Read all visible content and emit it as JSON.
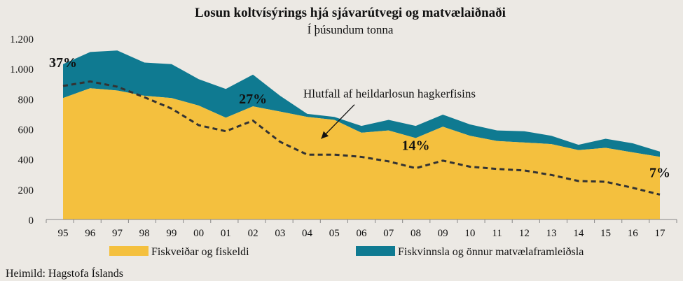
{
  "chart_data": {
    "type": "area",
    "stacked": true,
    "title": "Losun koltvísýrings  hjá sjávarútvegi og matvælaiðnaði",
    "subtitle": "Í þúsundum tonna",
    "source": "Heimild:  Hagstofa Íslands",
    "categories": [
      "95",
      "96",
      "97",
      "98",
      "99",
      "00",
      "01",
      "02",
      "03",
      "04",
      "05",
      "06",
      "07",
      "08",
      "09",
      "10",
      "11",
      "12",
      "13",
      "14",
      "15",
      "16",
      "17"
    ],
    "ylim": [
      0,
      1200
    ],
    "yticks": [
      0,
      200,
      400,
      600,
      800,
      1000,
      1200
    ],
    "ytick_labels": [
      "0",
      "200",
      "400",
      "600",
      "800",
      "1.000",
      "1.200"
    ],
    "series": [
      {
        "name": "Fiskveiðar og fiskeldi",
        "color": "#f4c03e",
        "values": [
          805,
          870,
          855,
          820,
          805,
          755,
          675,
          750,
          715,
          680,
          660,
          575,
          590,
          540,
          615,
          555,
          520,
          510,
          500,
          460,
          475,
          445,
          415
        ]
      },
      {
        "name": "Fiskvinnsla og önnur matvælaframleiðsla",
        "color": "#0f7a91",
        "values": [
          225,
          240,
          265,
          220,
          225,
          175,
          190,
          210,
          105,
          20,
          20,
          45,
          70,
          80,
          80,
          75,
          70,
          75,
          55,
          35,
          60,
          60,
          35
        ]
      }
    ],
    "share_line": {
      "name": "Hlutfall af heildarlosun hagkerfisins",
      "style": "dashed",
      "color": "#333333",
      "values": [
        885,
        915,
        880,
        810,
        735,
        625,
        585,
        655,
        515,
        430,
        430,
        415,
        385,
        340,
        390,
        350,
        335,
        325,
        295,
        255,
        250,
        210,
        165
      ]
    },
    "annotations": [
      {
        "text": "37%",
        "category": "95",
        "y": 1010
      },
      {
        "text": "27%",
        "category": "02",
        "y": 770
      },
      {
        "text": "14%",
        "category": "08",
        "y": 460
      },
      {
        "text": "7%",
        "category": "17",
        "y": 280
      }
    ],
    "arrow_label": {
      "text": "Hlutfall af heildarlosun hagkerfisins",
      "from": {
        "category": "06",
        "y": 780
      },
      "to": {
        "category": "04",
        "y": 545
      }
    }
  }
}
